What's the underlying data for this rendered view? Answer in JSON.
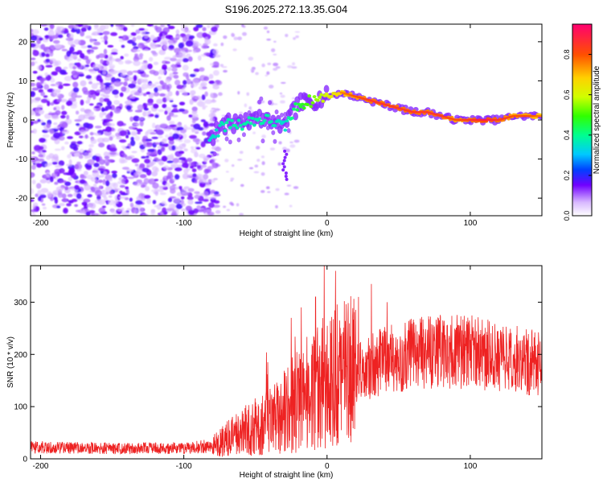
{
  "title": "S196.2025.272.13.35.G04",
  "colors": {
    "frame": "#000000",
    "snr_line": "#ee2222",
    "ridge_edge": "#2200dd"
  },
  "chart_data": [
    {
      "type": "heatmap",
      "xlabel": "Height of straight line (km)",
      "ylabel": "Frequency (Hz)",
      "xlim": [
        -207,
        150
      ],
      "ylim": [
        -24.5,
        24.5
      ],
      "x_ticks": [
        -200,
        -100,
        0,
        100
      ],
      "x_tick_labels": [
        "-200",
        "-100",
        "0",
        "100"
      ],
      "y_ticks": [
        20,
        10,
        0,
        -10,
        -20
      ],
      "y_tick_labels": [
        "20",
        "10",
        "0",
        "-10",
        "-20"
      ],
      "colorbar": {
        "label": "Normalized spectral amplitude",
        "range": [
          0,
          0.95
        ],
        "ticks": [
          0.0,
          0.2,
          0.4,
          0.6,
          0.8
        ],
        "tick_labels": [
          "0.0",
          "0.2",
          "0.4",
          "0.6",
          "0.8"
        ]
      },
      "ridge": {
        "x": [
          -80,
          -70,
          -60,
          -50,
          -40,
          -30,
          -20,
          -10,
          0,
          10,
          20,
          30,
          40,
          50,
          60,
          70,
          80,
          90,
          100,
          110,
          120,
          130,
          140,
          150
        ],
        "freq": [
          -4,
          -1,
          -1,
          0,
          0,
          -2,
          4,
          5,
          6,
          7,
          6,
          5,
          4,
          3,
          2,
          2,
          1,
          0,
          0,
          0,
          0,
          1,
          1,
          1
        ],
        "amplitude": [
          0.3,
          0.35,
          0.35,
          0.35,
          0.35,
          0.3,
          0.45,
          0.55,
          0.65,
          0.75,
          0.8,
          0.85,
          0.85,
          0.85,
          0.85,
          0.85,
          0.85,
          0.8,
          0.85,
          0.9,
          0.85,
          0.8,
          0.8,
          0.75
        ]
      },
      "noise_extent_x": [
        -207,
        -80
      ],
      "noise_amplitude": 0.1
    },
    {
      "type": "line",
      "xlabel": "Height of straight line (km)",
      "ylabel": "SNR (10 * v/v)",
      "xlim": [
        -207,
        150
      ],
      "ylim": [
        0,
        370
      ],
      "x_ticks": [
        -200,
        -100,
        0,
        100
      ],
      "x_tick_labels": [
        "-200",
        "-100",
        "0",
        "100"
      ],
      "y_ticks": [
        0,
        100,
        200,
        300
      ],
      "y_tick_labels": [
        "0",
        "100",
        "200",
        "300"
      ],
      "series": [
        {
          "name": "SNR",
          "envelope_x": [
            -207,
            -150,
            -100,
            -80,
            -60,
            -40,
            -20,
            -10,
            0,
            10,
            20,
            30,
            40,
            60,
            80,
            100,
            120,
            150
          ],
          "envelope_y": [
            22,
            20,
            20,
            25,
            50,
            75,
            110,
            125,
            150,
            160,
            165,
            175,
            190,
            200,
            205,
            205,
            195,
            180
          ],
          "spikes": [
            {
              "x": -25,
              "y": 270
            },
            {
              "x": -18,
              "y": 290
            },
            {
              "x": -8,
              "y": 310
            },
            {
              "x": -2,
              "y": 370
            },
            {
              "x": 6,
              "y": 360
            },
            {
              "x": 22,
              "y": 310
            },
            {
              "x": 31,
              "y": 335
            },
            {
              "x": 42,
              "y": 300
            }
          ]
        }
      ]
    }
  ]
}
